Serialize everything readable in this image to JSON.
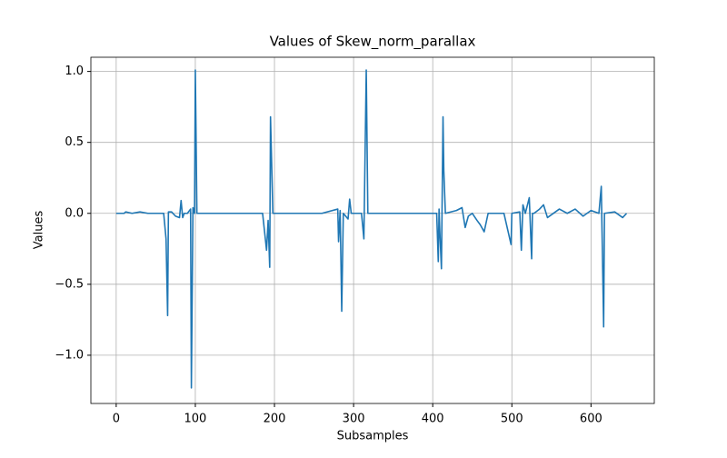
{
  "chart_data": {
    "type": "line",
    "title": "Values of Skew_norm_parallax",
    "x_label": "Subsamples",
    "y_label": "Values",
    "grid": true,
    "xlim": [
      -32,
      680
    ],
    "ylim": [
      -1.34,
      1.1
    ],
    "xticks": [
      0,
      100,
      200,
      300,
      400,
      500,
      600
    ],
    "yticks": [
      {
        "value": -1,
        "label": "−1.0"
      },
      {
        "value": -0.5,
        "label": "−0.5"
      },
      {
        "value": 0,
        "label": "0.0"
      },
      {
        "value": 0.5,
        "label": "0.5"
      },
      {
        "value": 1,
        "label": "1.0"
      }
    ],
    "series": [
      {
        "name": "Skew_norm_parallax",
        "color": "#1f77b4",
        "x": [
          0,
          10,
          12,
          20,
          30,
          40,
          50,
          60,
          63,
          65,
          66,
          70,
          75,
          80,
          82,
          84,
          86,
          90,
          94,
          95,
          97,
          99,
          100,
          102,
          120,
          150,
          185,
          190,
          192,
          194,
          195,
          198,
          230,
          260,
          280,
          281,
          283,
          285,
          287,
          293,
          295,
          297,
          310,
          313,
          316,
          318,
          319,
          340,
          380,
          405,
          407,
          408,
          409,
          411,
          413,
          414,
          416,
          430,
          437,
          441,
          445,
          450,
          456,
          460,
          465,
          470,
          490,
          499,
          500,
          510,
          512,
          514,
          517,
          522,
          525,
          526,
          528,
          535,
          540,
          545,
          560,
          570,
          580,
          590,
          600,
          610,
          613,
          616,
          617,
          630,
          640,
          645
        ],
        "values": [
          0,
          0,
          0.01,
          0,
          0.01,
          0,
          0,
          0,
          -0.18,
          -0.72,
          0.01,
          0.01,
          -0.02,
          -0.03,
          0.09,
          -0.03,
          0,
          0,
          0.03,
          -1.23,
          0.04,
          0,
          1.01,
          0,
          0,
          0,
          0,
          -0.26,
          -0.05,
          -0.38,
          0.68,
          0,
          0,
          0,
          0.03,
          -0.2,
          0.02,
          -0.69,
          0,
          -0.04,
          0.1,
          0,
          0,
          -0.18,
          1.01,
          0,
          0,
          0,
          0,
          0,
          -0.34,
          0.03,
          -0.13,
          -0.39,
          0.68,
          0.3,
          0,
          0.02,
          0.04,
          -0.1,
          -0.02,
          0,
          -0.05,
          -0.08,
          -0.13,
          0,
          0,
          -0.22,
          0,
          0.01,
          -0.26,
          0.06,
          0,
          0.11,
          -0.32,
          0,
          0,
          0.03,
          0.06,
          -0.03,
          0.03,
          0,
          0.03,
          -0.02,
          0.02,
          0,
          0.19,
          -0.8,
          0,
          0.01,
          -0.03,
          0
        ]
      }
    ]
  }
}
